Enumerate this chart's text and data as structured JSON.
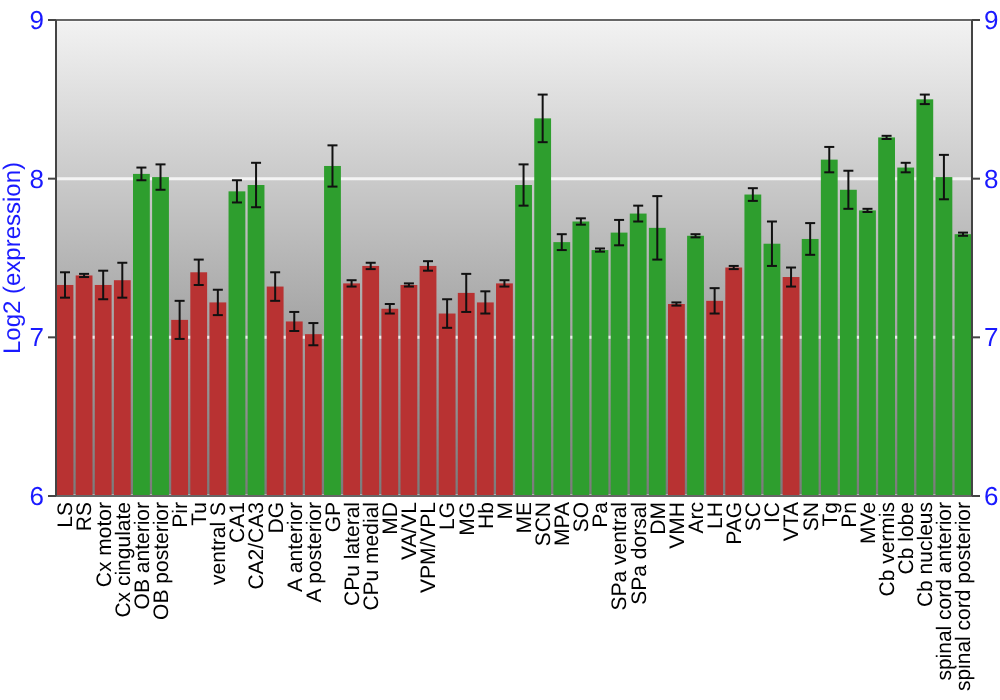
{
  "chart_data": {
    "type": "bar",
    "ylabel": "Log2 (expression)",
    "categories": [
      "LS",
      "RS",
      "Cx motor",
      "Cx cingulate",
      "OB anterior",
      "OB posterior",
      "Pir",
      "Tu",
      "ventral S",
      "CA1",
      "CA2/CA3",
      "DG",
      "A anterior",
      "A posterior",
      "GP",
      "CPu lateral",
      "CPu medial",
      "MD",
      "VA/VL",
      "VPM/VPL",
      "LG",
      "MG",
      "Hb",
      "M",
      "ME",
      "SCN",
      "MPA",
      "SO",
      "Pa",
      "SPa ventral",
      "SPa dorsal",
      "DM",
      "VMH",
      "Arc",
      "LH",
      "PAG",
      "SC",
      "IC",
      "VTA",
      "SN",
      "Tg",
      "Pn",
      "MVe",
      "Cb vermis",
      "Cb lobe",
      "Cb nucleus",
      "spinal cord anterior",
      "spinal cord posterior"
    ],
    "values": [
      7.33,
      7.39,
      7.33,
      7.36,
      8.03,
      8.01,
      7.11,
      7.41,
      7.22,
      7.92,
      7.96,
      7.32,
      7.1,
      7.02,
      8.08,
      7.34,
      7.45,
      7.18,
      7.33,
      7.45,
      7.15,
      7.28,
      7.22,
      7.34,
      7.96,
      8.38,
      7.6,
      7.73,
      7.55,
      7.66,
      7.78,
      7.69,
      7.21,
      7.64,
      7.23,
      7.44,
      7.9,
      7.59,
      7.38,
      7.62,
      8.12,
      7.93,
      7.8,
      8.26,
      8.07,
      8.5,
      8.01,
      7.65
    ],
    "errors": [
      0.08,
      0.01,
      0.09,
      0.11,
      0.04,
      0.08,
      0.12,
      0.08,
      0.08,
      0.07,
      0.14,
      0.09,
      0.06,
      0.07,
      0.13,
      0.02,
      0.02,
      0.03,
      0.01,
      0.03,
      0.09,
      0.12,
      0.07,
      0.02,
      0.13,
      0.15,
      0.05,
      0.02,
      0.01,
      0.08,
      0.05,
      0.2,
      0.01,
      0.01,
      0.08,
      0.01,
      0.04,
      0.14,
      0.06,
      0.1,
      0.08,
      0.12,
      0.01,
      0.01,
      0.03,
      0.03,
      0.14,
      0.01
    ],
    "colors": [
      "#b83232",
      "#b83232",
      "#b83232",
      "#b83232",
      "#2e9e2e",
      "#2e9e2e",
      "#b83232",
      "#b83232",
      "#b83232",
      "#2e9e2e",
      "#2e9e2e",
      "#b83232",
      "#b83232",
      "#b83232",
      "#2e9e2e",
      "#b83232",
      "#b83232",
      "#b83232",
      "#b83232",
      "#b83232",
      "#b83232",
      "#b83232",
      "#b83232",
      "#b83232",
      "#2e9e2e",
      "#2e9e2e",
      "#2e9e2e",
      "#2e9e2e",
      "#2e9e2e",
      "#2e9e2e",
      "#2e9e2e",
      "#2e9e2e",
      "#b83232",
      "#2e9e2e",
      "#b83232",
      "#b83232",
      "#2e9e2e",
      "#2e9e2e",
      "#b83232",
      "#2e9e2e",
      "#2e9e2e",
      "#2e9e2e",
      "#2e9e2e",
      "#2e9e2e",
      "#2e9e2e",
      "#2e9e2e",
      "#2e9e2e",
      "#2e9e2e"
    ],
    "ylim": [
      6,
      9
    ],
    "yticks": [
      6,
      7,
      8,
      9
    ],
    "y2lim": [
      6,
      9
    ],
    "y2ticks": [
      6,
      7,
      8,
      9
    ],
    "grid": "y"
  }
}
